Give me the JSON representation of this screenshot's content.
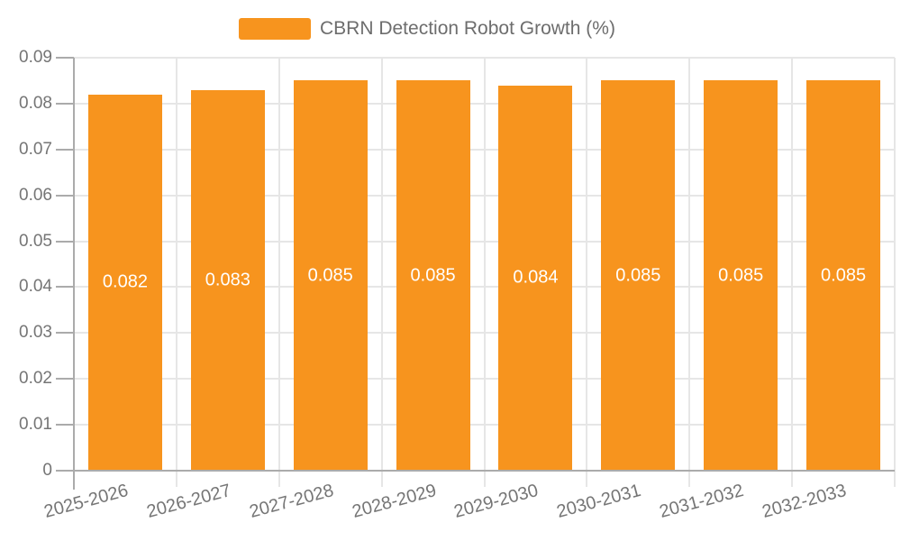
{
  "legend": {
    "label": "CBRN Detection Robot Growth (%)"
  },
  "chart_data": {
    "type": "bar",
    "title": "CBRN Detection Robot Growth (%)",
    "series_name": "CBRN Detection Robot Growth (%)",
    "categories": [
      "2025-2026",
      "2026-2027",
      "2027-2028",
      "2028-2029",
      "2029-2030",
      "2030-2031",
      "2031-2032",
      "2032-2033"
    ],
    "values": [
      0.082,
      0.083,
      0.085,
      0.085,
      0.084,
      0.085,
      0.085,
      0.085
    ],
    "value_labels": [
      "0.082",
      "0.083",
      "0.085",
      "0.085",
      "0.084",
      "0.085",
      "0.085",
      "0.085"
    ],
    "xlabel": "",
    "ylabel": "",
    "ylim": [
      0,
      0.09
    ],
    "ytick_step": 0.01,
    "ytick_labels": [
      "0",
      "0.01",
      "0.02",
      "0.03",
      "0.04",
      "0.05",
      "0.06",
      "0.07",
      "0.08",
      "0.09"
    ],
    "grid": true,
    "legend_position": "top-center",
    "bar_color": "#F7941E",
    "value_label_color": "#FFFFFF",
    "grid_color": "#E6E6E6",
    "axis_color": "#ABABAB",
    "text_color": "#757575"
  }
}
